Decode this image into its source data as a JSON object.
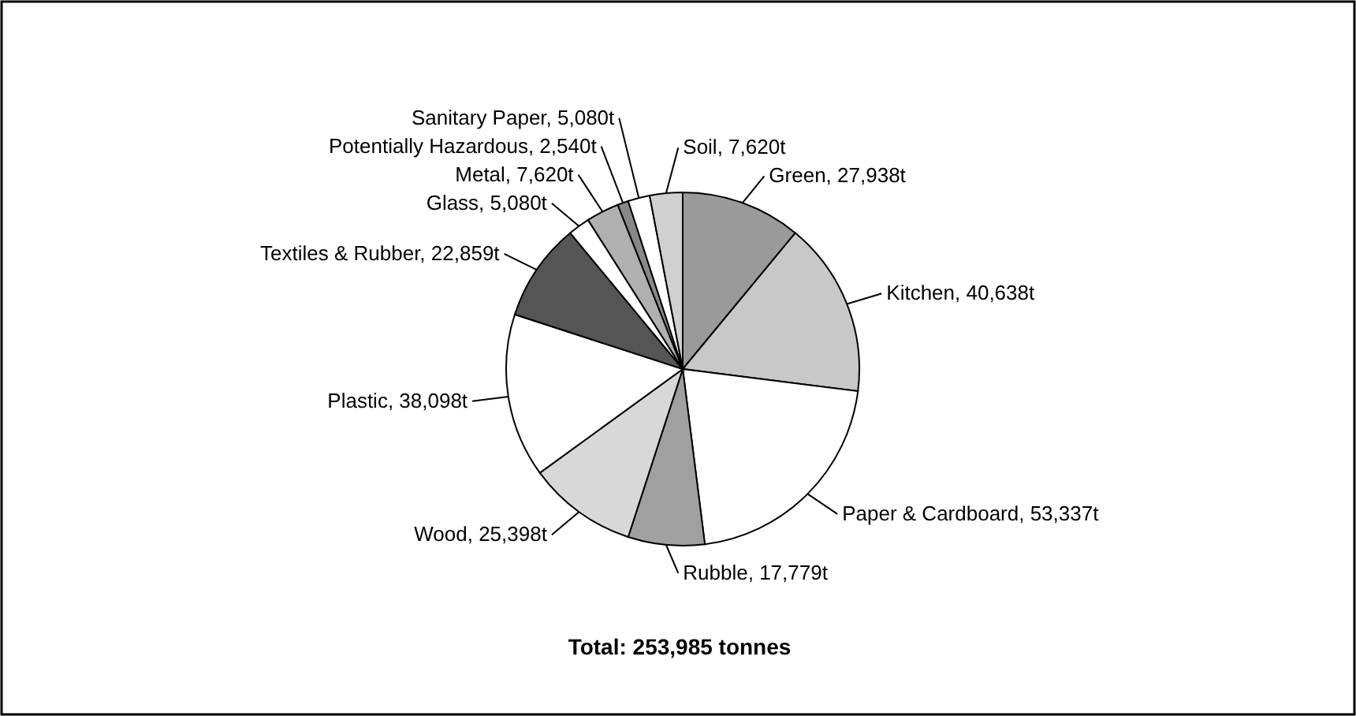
{
  "chart_data": {
    "type": "pie",
    "categories": [
      "Green",
      "Kitchen",
      "Paper & Cardboard",
      "Rubble",
      "Wood",
      "Plastic",
      "Textiles & Rubber",
      "Glass",
      "Metal",
      "Potentially Hazardous",
      "Sanitary Paper",
      "Soil"
    ],
    "values": [
      27938,
      40638,
      53337,
      17779,
      25398,
      38098,
      22859,
      5080,
      7620,
      2540,
      5080,
      7620
    ],
    "value_labels": [
      "27,938t",
      "40,638t",
      "53,337t",
      "17,779t",
      "25,398t",
      "38,098t",
      "22,859t",
      "5,080t",
      "7,620t",
      "2,540t",
      "5,080t",
      "7,620t"
    ],
    "colors": [
      "#9a9a9a",
      "#c8c8c8",
      "#ffffff",
      "#a0a0a0",
      "#d8d8d8",
      "#ffffff",
      "#555555",
      "#ffffff",
      "#b0b0b0",
      "#888888",
      "#ffffff",
      "#d0d0d0"
    ],
    "annotations": [
      "Total: 253,985 tonnes"
    ]
  }
}
